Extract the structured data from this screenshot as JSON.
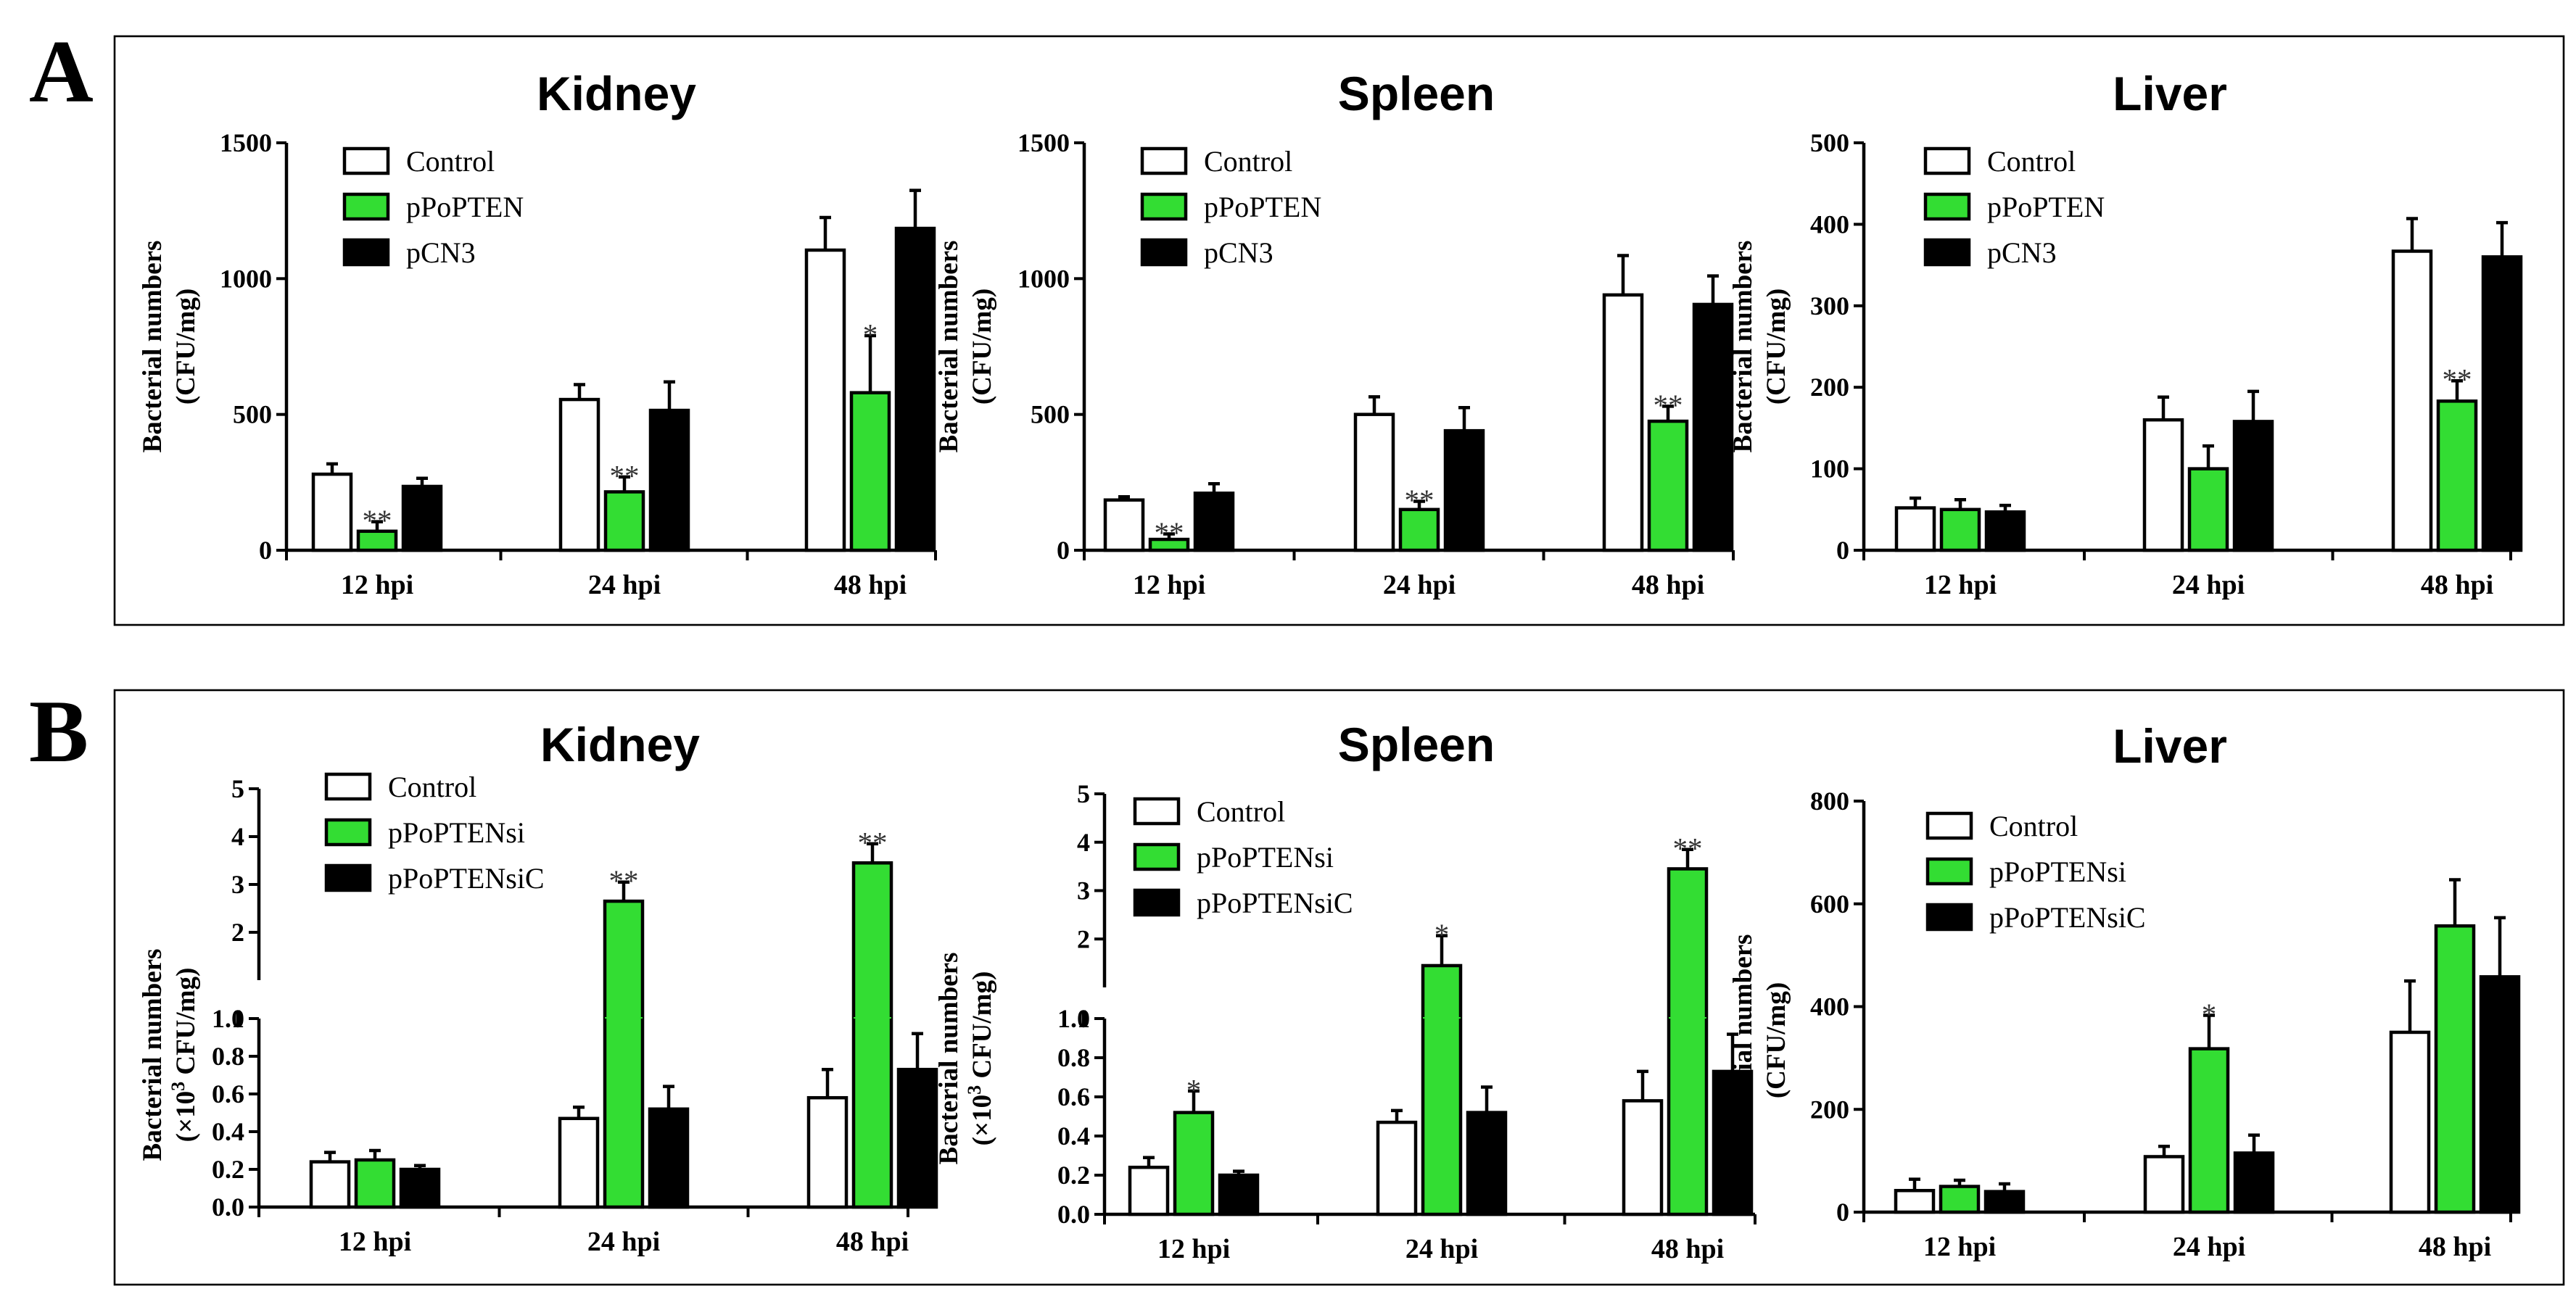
{
  "panels": [
    {
      "letter": "A"
    },
    {
      "letter": "B"
    }
  ],
  "colors": {
    "control": "#ffffff",
    "treated": "#33dd33",
    "vector": "#000000",
    "outline": "#000000"
  },
  "chart_data": [
    {
      "type": "bar",
      "panel": "A",
      "title": "Kidney",
      "ylabel": [
        "Bacterial numbers",
        "(CFU/mg)"
      ],
      "categories": [
        "12 hpi",
        "24 hpi",
        "48 hpi"
      ],
      "ylim": [
        0,
        1500
      ],
      "yticks": [
        0,
        500,
        1000,
        1500
      ],
      "legend_position": "top-left",
      "series": [
        {
          "name": "Control",
          "values": [
            280,
            555,
            1105
          ],
          "errors": [
            38,
            55,
            120
          ],
          "sig": [
            "",
            "",
            ""
          ]
        },
        {
          "name": "pPoPTEN",
          "values": [
            70,
            215,
            580
          ],
          "errors": [
            35,
            55,
            210
          ],
          "sig": [
            "**",
            "**",
            "*"
          ]
        },
        {
          "name": "pCN3",
          "values": [
            235,
            515,
            1185
          ],
          "errors": [
            30,
            105,
            140
          ],
          "sig": [
            "",
            "",
            ""
          ]
        }
      ]
    },
    {
      "type": "bar",
      "panel": "A",
      "title": "Spleen",
      "ylabel": [
        "Bacterial numbers",
        "(CFU/mg)"
      ],
      "categories": [
        "12 hpi",
        "24 hpi",
        "48 hpi"
      ],
      "ylim": [
        0,
        1500
      ],
      "yticks": [
        0,
        500,
        1000,
        1500
      ],
      "legend_position": "top-left",
      "series": [
        {
          "name": "Control",
          "values": [
            185,
            500,
            940
          ],
          "errors": [
            12,
            65,
            145
          ],
          "sig": [
            "",
            "",
            ""
          ]
        },
        {
          "name": "pPoPTEN",
          "values": [
            40,
            150,
            475
          ],
          "errors": [
            20,
            30,
            55
          ],
          "sig": [
            "**",
            "**",
            "**"
          ]
        },
        {
          "name": "pCN3",
          "values": [
            210,
            440,
            905
          ],
          "errors": [
            35,
            85,
            105
          ],
          "sig": [
            "",
            "",
            ""
          ]
        }
      ]
    },
    {
      "type": "bar",
      "panel": "A",
      "title": "Liver",
      "ylabel": [
        "Bacterial numbers",
        "(CFU/mg)"
      ],
      "categories": [
        "12 hpi",
        "24 hpi",
        "48 hpi"
      ],
      "ylim": [
        0,
        500
      ],
      "yticks": [
        0,
        100,
        200,
        300,
        400,
        500
      ],
      "legend_position": "top-left",
      "series": [
        {
          "name": "Control",
          "values": [
            52,
            160,
            367
          ],
          "errors": [
            12,
            28,
            40
          ],
          "sig": [
            "",
            "",
            ""
          ]
        },
        {
          "name": "pPoPTEN",
          "values": [
            50,
            100,
            183
          ],
          "errors": [
            12,
            28,
            25
          ],
          "sig": [
            "",
            "",
            "**"
          ]
        },
        {
          "name": "pCN3",
          "values": [
            47,
            158,
            360
          ],
          "errors": [
            8,
            37,
            42
          ],
          "sig": [
            "",
            "",
            ""
          ]
        }
      ]
    },
    {
      "type": "bar",
      "panel": "B",
      "title": "Kidney",
      "ylabel": [
        "Bacterial numbers",
        "(×10",
        "3",
        " CFU/mg)"
      ],
      "categories": [
        "12 hpi",
        "24 hpi",
        "48 hpi"
      ],
      "broken_axis": true,
      "lower_ylim": [
        0,
        1.0
      ],
      "lower_yticks": [
        "0.0",
        "0.2",
        "0.4",
        "0.6",
        "0.8",
        "1.0"
      ],
      "upper_ylim": [
        1,
        5
      ],
      "upper_yticks": [
        "1",
        "2",
        "3",
        "4",
        "5"
      ],
      "legend_position": "top-left",
      "series": [
        {
          "name": "Control",
          "values": [
            0.24,
            0.47,
            0.58
          ],
          "errors": [
            0.05,
            0.06,
            0.15
          ],
          "sig": [
            "",
            "",
            ""
          ]
        },
        {
          "name": "pPoPTENsi",
          "values": [
            0.25,
            2.65,
            3.45
          ],
          "errors": [
            0.05,
            0.4,
            0.4
          ],
          "sig": [
            "",
            "**",
            "**"
          ]
        },
        {
          "name": "pPoPTENsiC",
          "values": [
            0.2,
            0.52,
            0.73
          ],
          "errors": [
            0.02,
            0.12,
            0.19
          ],
          "sig": [
            "",
            "",
            ""
          ]
        }
      ]
    },
    {
      "type": "bar",
      "panel": "B",
      "title": "Spleen",
      "ylabel": [
        "Bacterial numbers",
        "(×10",
        "3",
        " CFU/mg)"
      ],
      "categories": [
        "12 hpi",
        "24 hpi",
        "48 hpi"
      ],
      "broken_axis": true,
      "lower_ylim": [
        0,
        1.0
      ],
      "lower_yticks": [
        "0.0",
        "0.2",
        "0.4",
        "0.6",
        "0.8",
        "1.0"
      ],
      "upper_ylim": [
        1,
        5
      ],
      "upper_yticks": [
        "1",
        "2",
        "3",
        "4",
        "5"
      ],
      "legend_position": "top-left",
      "series": [
        {
          "name": "Control",
          "values": [
            0.24,
            0.47,
            0.58
          ],
          "errors": [
            0.05,
            0.06,
            0.15
          ],
          "sig": [
            "",
            "",
            ""
          ]
        },
        {
          "name": "pPoPTENsi",
          "values": [
            0.52,
            1.45,
            3.45
          ],
          "errors": [
            0.11,
            0.62,
            0.4
          ],
          "sig": [
            "*",
            "*",
            "**"
          ]
        },
        {
          "name": "pPoPTENsiC",
          "values": [
            0.2,
            0.52,
            0.73
          ],
          "errors": [
            0.02,
            0.13,
            0.19
          ],
          "sig": [
            "",
            "",
            ""
          ]
        }
      ]
    },
    {
      "type": "bar",
      "panel": "B",
      "title": "Liver",
      "ylabel": [
        "Bacterial numbers",
        "(CFU/mg)"
      ],
      "categories": [
        "12 hpi",
        "24 hpi",
        "48 hpi"
      ],
      "ylim": [
        0,
        800
      ],
      "yticks": [
        0,
        200,
        400,
        600,
        800
      ],
      "legend_position": "top-left",
      "series": [
        {
          "name": "Control",
          "values": [
            42,
            108,
            350
          ],
          "errors": [
            22,
            20,
            100
          ],
          "sig": [
            "",
            "",
            ""
          ]
        },
        {
          "name": "pPoPTENsi",
          "values": [
            50,
            318,
            557
          ],
          "errors": [
            12,
            65,
            90
          ],
          "sig": [
            "",
            "*",
            ""
          ]
        },
        {
          "name": "pPoPTENsiC",
          "values": [
            40,
            115,
            458
          ],
          "errors": [
            15,
            35,
            115
          ],
          "sig": [
            "",
            "",
            ""
          ]
        }
      ]
    }
  ]
}
